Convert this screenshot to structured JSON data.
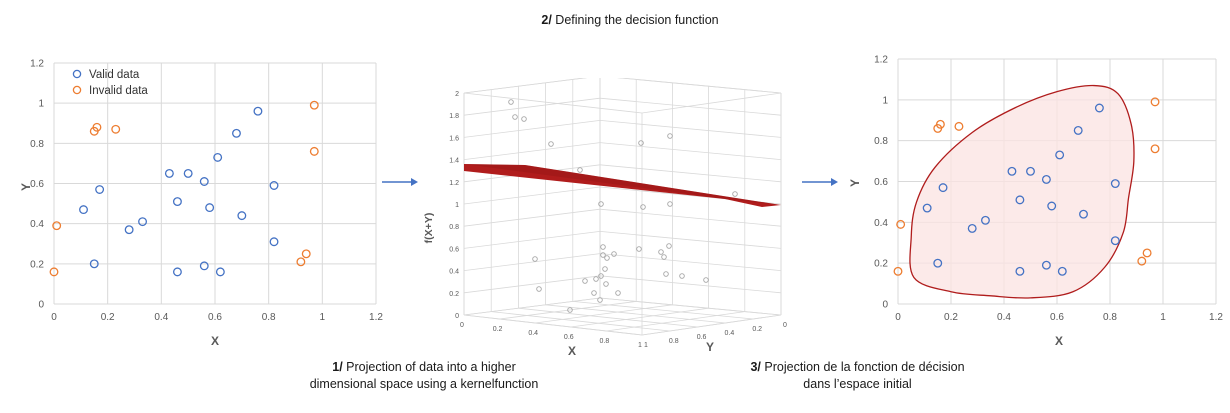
{
  "captions": {
    "step1_num": "1/",
    "step1_text": "Projection of data into a higher dimensional space using a kernelfunction",
    "step2_num": "2/",
    "step2_text": "Defining the decision function",
    "step3_num": "3/",
    "step3_text": "Projection de la fonction de décision dans l’espace initial"
  },
  "colors": {
    "valid": "#4472c4",
    "invalid": "#ed7d31",
    "arrow": "#4472c4",
    "plane": "#b01c1c",
    "region_fill": "#fbe3e1",
    "region_stroke": "#b01c1c",
    "grid": "#d9d9d9",
    "axis_text": "#595959"
  },
  "chart_data": [
    {
      "type": "scatter",
      "title": "",
      "xlabel": "X",
      "ylabel": "Y",
      "xlim": [
        0,
        1.2
      ],
      "ylim": [
        0,
        1.2
      ],
      "xticks": [
        "0",
        "0.2",
        "0.4",
        "0.6",
        "0.8",
        "1",
        "1.2"
      ],
      "yticks": [
        "0",
        "0.2",
        "0.4",
        "0.6",
        "0.8",
        "1",
        "1.2"
      ],
      "grid": true,
      "legend": "top-left",
      "series": [
        {
          "name": "Valid data",
          "points": [
            [
              0.76,
              0.96
            ],
            [
              0.68,
              0.85
            ],
            [
              0.61,
              0.73
            ],
            [
              0.5,
              0.65
            ],
            [
              0.43,
              0.65
            ],
            [
              0.56,
              0.61
            ],
            [
              0.82,
              0.59
            ],
            [
              0.17,
              0.57
            ],
            [
              0.46,
              0.51
            ],
            [
              0.58,
              0.48
            ],
            [
              0.11,
              0.47
            ],
            [
              0.7,
              0.44
            ],
            [
              0.33,
              0.41
            ],
            [
              0.28,
              0.37
            ],
            [
              0.82,
              0.31
            ],
            [
              0.15,
              0.2
            ],
            [
              0.56,
              0.19
            ],
            [
              0.46,
              0.16
            ],
            [
              0.62,
              0.16
            ]
          ]
        },
        {
          "name": "Invalid data",
          "points": [
            [
              0.97,
              0.99
            ],
            [
              0.16,
              0.88
            ],
            [
              0.15,
              0.86
            ],
            [
              0.23,
              0.87
            ],
            [
              0.97,
              0.76
            ],
            [
              0.01,
              0.39
            ],
            [
              0.94,
              0.25
            ],
            [
              0.92,
              0.21
            ],
            [
              0.0,
              0.16
            ]
          ]
        }
      ]
    },
    {
      "type": "scatter3d",
      "title": "",
      "xlabel": "X",
      "ylabel": "Y",
      "zlabel": "f(X+Y)",
      "zticks": [
        "0",
        "0.2",
        "0.4",
        "0.6",
        "0.8",
        "1",
        "1.2",
        "1.4",
        "1.6",
        "1.8",
        "2"
      ],
      "xticks": [
        "0",
        "0.2",
        "0.4",
        "0.6",
        "0.8",
        "1"
      ],
      "yticks": [
        "1",
        "0.8",
        "0.6",
        "0.4",
        "0.2",
        "0"
      ]
    },
    {
      "type": "scatter",
      "title": "",
      "xlabel": "X",
      "ylabel": "Y",
      "xlim": [
        0,
        1.2
      ],
      "ylim": [
        0,
        1.2
      ],
      "xticks": [
        "0",
        "0.2",
        "0.4",
        "0.6",
        "0.8",
        "1",
        "1.2"
      ],
      "yticks": [
        "0",
        "0.2",
        "0.4",
        "0.6",
        "0.8",
        "1",
        "1.2"
      ],
      "grid": true,
      "decision_region": "closed boundary enclosing valid data",
      "series": [
        {
          "name": "Valid data",
          "points": [
            [
              0.76,
              0.96
            ],
            [
              0.68,
              0.85
            ],
            [
              0.61,
              0.73
            ],
            [
              0.5,
              0.65
            ],
            [
              0.43,
              0.65
            ],
            [
              0.56,
              0.61
            ],
            [
              0.82,
              0.59
            ],
            [
              0.17,
              0.57
            ],
            [
              0.46,
              0.51
            ],
            [
              0.58,
              0.48
            ],
            [
              0.11,
              0.47
            ],
            [
              0.7,
              0.44
            ],
            [
              0.33,
              0.41
            ],
            [
              0.28,
              0.37
            ],
            [
              0.82,
              0.31
            ],
            [
              0.15,
              0.2
            ],
            [
              0.56,
              0.19
            ],
            [
              0.46,
              0.16
            ],
            [
              0.62,
              0.16
            ]
          ]
        },
        {
          "name": "Invalid data",
          "points": [
            [
              0.97,
              0.99
            ],
            [
              0.16,
              0.88
            ],
            [
              0.15,
              0.86
            ],
            [
              0.23,
              0.87
            ],
            [
              0.97,
              0.76
            ],
            [
              0.01,
              0.39
            ],
            [
              0.94,
              0.25
            ],
            [
              0.92,
              0.21
            ],
            [
              0.0,
              0.16
            ]
          ]
        }
      ]
    }
  ]
}
